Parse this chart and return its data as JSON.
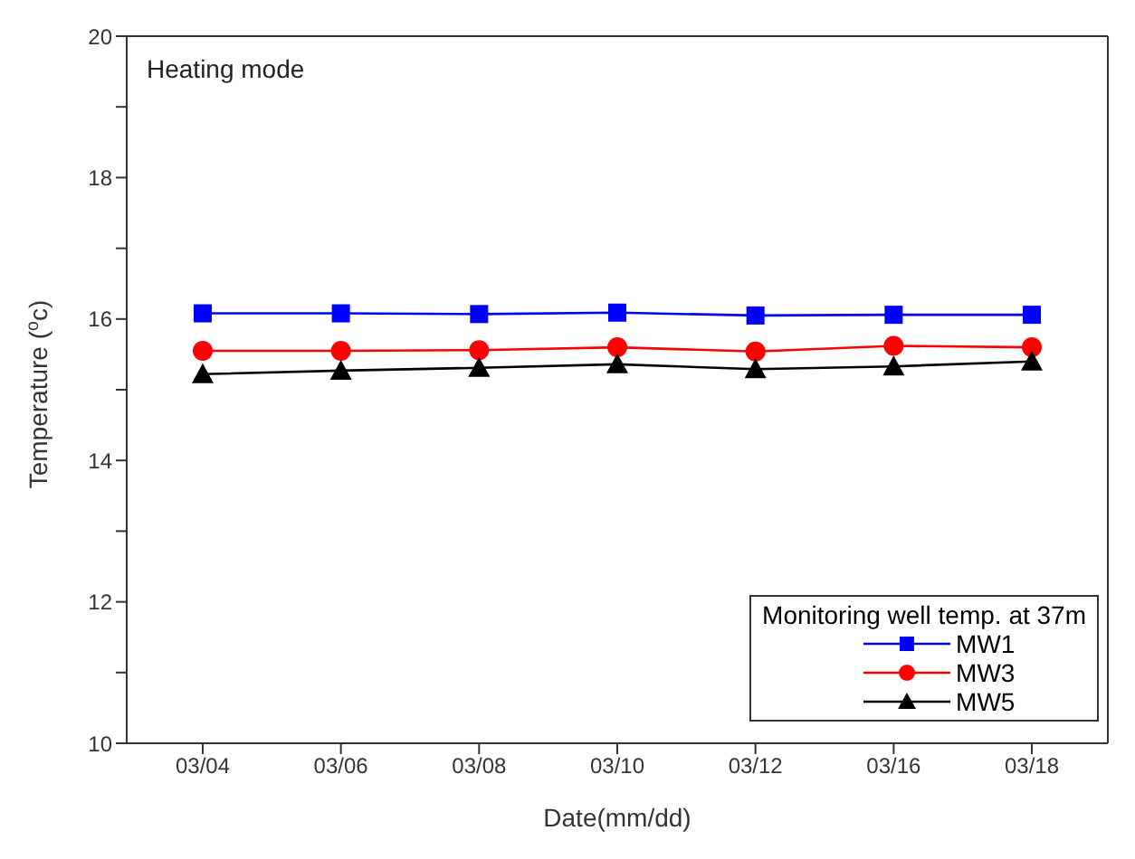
{
  "chart_data": {
    "type": "line",
    "xlabel": "Date(mm/dd)",
    "ylabel": "Temperature ($^{o}$c)",
    "annotations": [
      "Heating mode"
    ],
    "legend_title": "Monitoring well temp. at 37m",
    "legend": "bottom right",
    "grid": false,
    "categories": [
      "03/04",
      "03/06",
      "03/08",
      "03/10",
      "03/12",
      "03/16",
      "03/18"
    ],
    "ylim": [
      10,
      20
    ],
    "yticks": [
      10,
      {
        "value": 11,
        "label": null
      },
      12,
      {
        "value": 13,
        "label": null
      },
      14,
      {
        "value": 15,
        "label": null
      },
      16,
      {
        "value": 17,
        "label": null
      },
      18,
      {
        "value": 19,
        "label": null
      },
      20
    ],
    "series": [
      {
        "name": "MW1",
        "color": "#0000ff",
        "marker": "square",
        "values": [
          16.08,
          16.08,
          16.07,
          16.09,
          16.05,
          16.06,
          16.06
        ]
      },
      {
        "name": "MW3",
        "color": "#ff0000",
        "marker": "circle",
        "values": [
          15.55,
          15.55,
          15.56,
          15.6,
          15.54,
          15.62,
          15.6
        ]
      },
      {
        "name": "MW5",
        "color": "#000000",
        "marker": "triangle",
        "values": [
          15.22,
          15.27,
          15.31,
          15.36,
          15.29,
          15.33,
          15.4
        ]
      }
    ]
  }
}
